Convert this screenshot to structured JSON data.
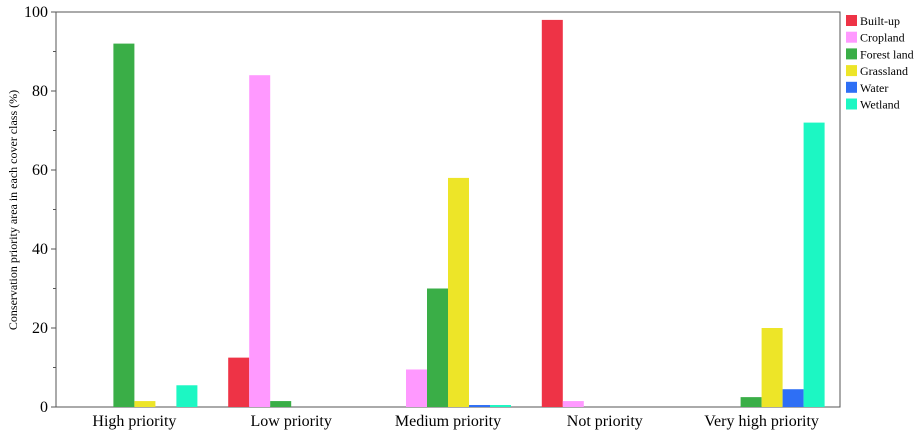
{
  "chart_data": {
    "type": "bar",
    "ylabel": "Conservation priority area in each cover class (%)",
    "ylim": [
      0,
      100
    ],
    "yticks": [
      0,
      20,
      40,
      60,
      80,
      100
    ],
    "grid": false,
    "legend_position": "top-right",
    "categories": [
      "High priority",
      "Low priority",
      "Medium priority",
      "Not priority",
      "Very high priority"
    ],
    "series": [
      {
        "name": "Built-up",
        "color": "#ee3346",
        "values": [
          0,
          12.5,
          0,
          98,
          0
        ]
      },
      {
        "name": "Cropland",
        "color": "#ff99ff",
        "values": [
          0,
          84,
          9.5,
          1.5,
          0
        ]
      },
      {
        "name": "Forest land",
        "color": "#3aae47",
        "values": [
          92,
          1.5,
          30,
          0,
          2.5
        ]
      },
      {
        "name": "Grassland",
        "color": "#ede528",
        "values": [
          1.5,
          0,
          58,
          0,
          20
        ]
      },
      {
        "name": "Water",
        "color": "#2e6ff5",
        "values": [
          0,
          0,
          0.5,
          0,
          4.5
        ]
      },
      {
        "name": "Wetland",
        "color": "#1cf7c3",
        "values": [
          5.5,
          0,
          0.5,
          0,
          72
        ]
      }
    ]
  }
}
